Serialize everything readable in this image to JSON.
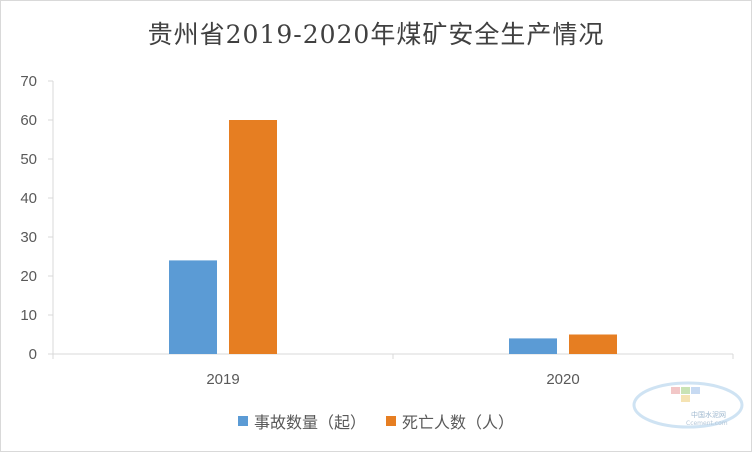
{
  "chart_data": {
    "type": "bar",
    "title": "贵州省2019-2020年煤矿安全生产情况",
    "categories": [
      "2019",
      "2020"
    ],
    "series": [
      {
        "name": "事故数量（起）",
        "values": [
          24,
          4
        ],
        "color": "#5B9BD5"
      },
      {
        "name": "死亡人数（人）",
        "values": [
          60,
          5
        ],
        "color": "#E67E22"
      }
    ],
    "ylim": [
      0,
      70
    ],
    "yticks": [
      0,
      10,
      20,
      30,
      40,
      50,
      60,
      70
    ],
    "xlabel": "",
    "ylabel": "",
    "grid": false,
    "legend_position": "bottom"
  },
  "watermark": {
    "line1": "中国水泥网",
    "line2": "Ccement.com"
  }
}
